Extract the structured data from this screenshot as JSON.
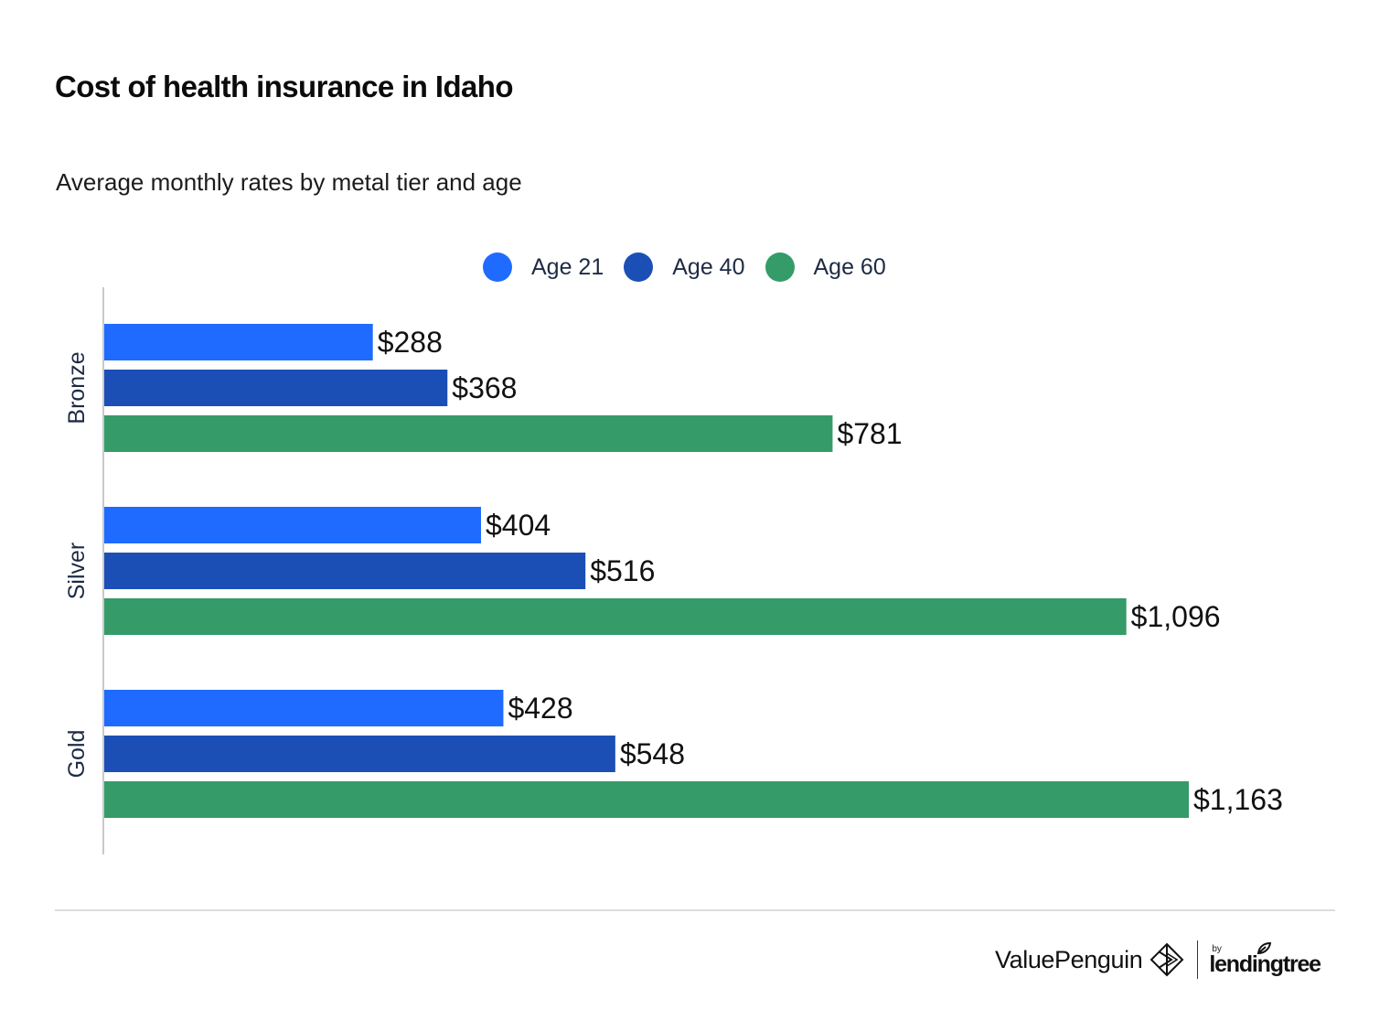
{
  "header": {
    "title": "Cost of health insurance in Idaho",
    "subtitle": "Average monthly rates by metal tier and age"
  },
  "colors": {
    "age21": "#1f6bff",
    "age40": "#1b4fb5",
    "age60": "#359b68"
  },
  "chart_data": {
    "type": "bar",
    "orientation": "horizontal",
    "categories": [
      "Bronze",
      "Silver",
      "Gold"
    ],
    "series": [
      {
        "name": "Age 21",
        "color": "#1f6bff",
        "values": [
          288,
          404,
          428
        ],
        "labels": [
          "$288",
          "$404",
          "$428"
        ]
      },
      {
        "name": "Age 40",
        "color": "#1b4fb5",
        "values": [
          368,
          516,
          548
        ],
        "labels": [
          "$368",
          "$516",
          "$548"
        ]
      },
      {
        "name": "Age 60",
        "color": "#359b68",
        "values": [
          781,
          1096,
          1163
        ],
        "labels": [
          "$781",
          "$1,096",
          "$1,163"
        ]
      }
    ],
    "xlim": [
      0,
      1163
    ],
    "legend_position": "top",
    "grid": false
  },
  "footer": {
    "brand": "ValuePenguin",
    "partner_by": "by",
    "partner": "lendingtree"
  }
}
